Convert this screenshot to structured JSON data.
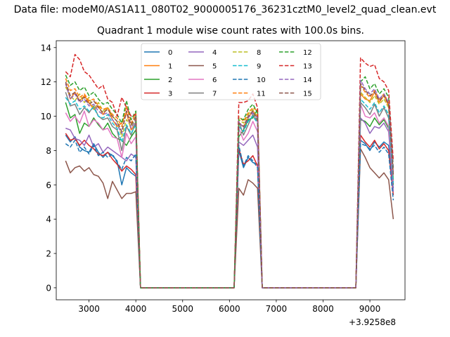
{
  "suptitle": "Data file: modeM0/AS1A11_080T02_9000005176_36231cztM0_level2_quad_clean.evt",
  "chart_data": {
    "type": "line",
    "title": "Quadrant 1 module wise count rates with 100.0s bins.",
    "xlabel": "",
    "ylabel": "",
    "x_offset_label": "+3.9258e8",
    "xlim": [
      2300,
      9750
    ],
    "ylim": [
      -0.7,
      14.4
    ],
    "xticks": [
      3000,
      4000,
      5000,
      6000,
      7000,
      8000,
      9000
    ],
    "yticks": [
      0,
      2,
      4,
      6,
      8,
      10,
      12,
      14
    ],
    "grid": false,
    "legend_position": "top-center",
    "legend_columns": 4,
    "x_segments": [
      {
        "start": 2500,
        "end": 4000,
        "step": 100
      },
      {
        "start": 6200,
        "end": 6600,
        "step": 100
      },
      {
        "start": 8800,
        "end": 9500,
        "step": 100
      }
    ],
    "series": [
      {
        "name": "0",
        "color": "#1f77b4",
        "dash": false,
        "seg_values": [
          [
            8.9,
            8.5,
            8.8,
            8.2,
            8.0,
            7.9,
            8.4,
            7.9,
            7.6,
            7.9,
            7.7,
            7.4,
            6.0,
            7.0,
            6.7,
            6.5
          ],
          [
            8.0,
            7.0,
            7.6,
            7.3,
            7.2
          ],
          [
            8.6,
            8.4,
            8.0,
            8.5,
            8.2,
            8.5,
            8.3,
            5.8
          ]
        ]
      },
      {
        "name": "1",
        "color": "#ff7f0e",
        "dash": false,
        "seg_values": [
          [
            11.9,
            11.0,
            11.4,
            10.9,
            11.2,
            10.8,
            10.4,
            10.6,
            10.1,
            10.5,
            9.8,
            9.4,
            9.6,
            10.2,
            9.2,
            9.6
          ],
          [
            9.6,
            9.4,
            9.9,
            10.3,
            10.0
          ],
          [
            11.3,
            11.0,
            10.9,
            11.4,
            10.8,
            11.2,
            10.6,
            6.2
          ]
        ]
      },
      {
        "name": "2",
        "color": "#2ca02c",
        "dash": false,
        "seg_values": [
          [
            10.8,
            9.9,
            10.1,
            9.0,
            9.6,
            9.4,
            9.9,
            9.5,
            9.2,
            9.6,
            9.0,
            8.7,
            8.6,
            8.3,
            8.8,
            9.2
          ],
          [
            8.8,
            9.2,
            9.8,
            9.9,
            10.4
          ],
          [
            9.8,
            9.7,
            9.4,
            9.9,
            9.5,
            9.8,
            9.3,
            6.0
          ]
        ]
      },
      {
        "name": "3",
        "color": "#d62728",
        "dash": false,
        "seg_values": [
          [
            9.0,
            8.6,
            8.7,
            8.3,
            8.6,
            8.3,
            8.1,
            7.8,
            7.7,
            7.9,
            7.5,
            7.2,
            6.8,
            7.1,
            6.9,
            6.6
          ],
          [
            8.1,
            7.2,
            7.4,
            7.7,
            7.1
          ],
          [
            8.9,
            8.5,
            8.2,
            8.6,
            8.1,
            8.4,
            8.0,
            5.4
          ]
        ]
      },
      {
        "name": "4",
        "color": "#9467bd",
        "dash": false,
        "seg_values": [
          [
            9.3,
            9.2,
            8.7,
            8.6,
            8.3,
            8.9,
            8.2,
            8.4,
            7.9,
            8.2,
            8.0,
            7.8,
            7.6,
            7.4,
            7.8,
            7.6
          ],
          [
            8.5,
            8.3,
            8.6,
            8.9,
            8.2
          ],
          [
            9.9,
            9.6,
            9.0,
            9.4,
            9.3,
            9.6,
            9.1,
            5.6
          ]
        ]
      },
      {
        "name": "5",
        "color": "#8c564b",
        "dash": false,
        "seg_values": [
          [
            7.4,
            6.7,
            7.0,
            7.1,
            6.8,
            7.0,
            6.6,
            6.5,
            6.1,
            5.2,
            6.2,
            5.7,
            5.2,
            5.5,
            5.5,
            5.6
          ],
          [
            5.8,
            5.4,
            6.3,
            6.1,
            5.8
          ],
          [
            8.1,
            7.6,
            7.0,
            6.7,
            6.4,
            6.7,
            6.3,
            4.0
          ]
        ]
      },
      {
        "name": "6",
        "color": "#e377c2",
        "dash": false,
        "seg_values": [
          [
            10.2,
            9.7,
            10.0,
            9.6,
            10.3,
            9.4,
            9.8,
            9.6,
            9.2,
            9.3,
            8.8,
            8.7,
            7.6,
            9.0,
            8.4,
            8.8
          ],
          [
            9.3,
            8.6,
            9.0,
            9.7,
            9.1
          ],
          [
            10.7,
            10.0,
            9.9,
            10.2,
            9.6,
            9.9,
            9.4,
            6.1
          ]
        ]
      },
      {
        "name": "7",
        "color": "#7f7f7f",
        "dash": false,
        "seg_values": [
          [
            11.4,
            10.6,
            10.7,
            10.1,
            10.5,
            10.2,
            10.6,
            10.0,
            9.8,
            9.9,
            9.4,
            9.2,
            8.0,
            9.4,
            8.9,
            9.7
          ],
          [
            9.7,
            8.9,
            9.5,
            10.1,
            9.7
          ],
          [
            10.8,
            10.5,
            10.1,
            10.7,
            10.0,
            10.5,
            9.9,
            6.3
          ]
        ]
      },
      {
        "name": "8",
        "color": "#bcbd22",
        "dash": true,
        "seg_values": [
          [
            11.7,
            11.2,
            10.9,
            11.3,
            10.8,
            11.1,
            10.4,
            10.8,
            10.3,
            10.5,
            10.0,
            9.7,
            8.8,
            9.8,
            9.4,
            9.9
          ],
          [
            9.8,
            9.6,
            10.1,
            10.4,
            9.9
          ],
          [
            11.4,
            11.1,
            10.8,
            11.2,
            10.7,
            11.0,
            10.5,
            6.4
          ]
        ]
      },
      {
        "name": "9",
        "color": "#17becf",
        "dash": true,
        "seg_values": [
          [
            11.1,
            10.7,
            10.9,
            10.4,
            10.6,
            10.3,
            10.5,
            10.0,
            9.9,
            10.1,
            9.6,
            9.3,
            8.5,
            9.5,
            9.0,
            9.5
          ],
          [
            9.4,
            9.1,
            9.7,
            10.0,
            9.6
          ],
          [
            11.0,
            10.7,
            10.4,
            10.8,
            10.2,
            10.6,
            10.1,
            6.1
          ]
        ]
      },
      {
        "name": "10",
        "color": "#1f77b4",
        "dash": true,
        "seg_values": [
          [
            8.4,
            8.2,
            8.6,
            7.9,
            8.2,
            7.8,
            8.3,
            7.7,
            7.9,
            7.6,
            7.8,
            7.3,
            6.9,
            7.6,
            7.4,
            7.8
          ],
          [
            8.3,
            7.1,
            7.7,
            7.4,
            7.0
          ],
          [
            8.4,
            8.3,
            8.1,
            8.3,
            7.9,
            8.2,
            7.8,
            5.1
          ]
        ]
      },
      {
        "name": "11",
        "color": "#ff7f0e",
        "dash": true,
        "seg_values": [
          [
            12.2,
            11.5,
            11.6,
            11.1,
            11.3,
            10.9,
            11.0,
            10.6,
            10.4,
            10.5,
            10.1,
            9.9,
            9.4,
            10.6,
            9.6,
            10.2
          ],
          [
            10.0,
            9.7,
            10.2,
            10.5,
            10.3
          ],
          [
            11.8,
            11.4,
            11.1,
            11.5,
            11.0,
            11.3,
            10.8,
            6.7
          ]
        ]
      },
      {
        "name": "12",
        "color": "#2ca02c",
        "dash": true,
        "seg_values": [
          [
            12.4,
            11.8,
            12.0,
            11.5,
            11.7,
            11.2,
            11.4,
            11.0,
            10.7,
            10.8,
            10.4,
            10.1,
            9.6,
            10.9,
            9.8,
            10.3
          ],
          [
            9.9,
            9.8,
            10.4,
            10.7,
            10.2
          ],
          [
            12.0,
            12.3,
            11.6,
            11.9,
            11.3,
            11.6,
            11.1,
            7.0
          ]
        ]
      },
      {
        "name": "13",
        "color": "#d62728",
        "dash": true,
        "seg_values": [
          [
            12.6,
            12.3,
            13.6,
            13.3,
            12.6,
            12.4,
            12.0,
            11.6,
            11.8,
            11.0,
            10.8,
            10.0,
            11.1,
            10.5,
            10.0,
            10.1
          ],
          [
            10.8,
            10.8,
            10.9,
            11.3,
            10.5
          ],
          [
            13.4,
            13.1,
            12.9,
            13.0,
            12.2,
            12.0,
            11.5,
            7.4
          ]
        ]
      },
      {
        "name": "14",
        "color": "#9467bd",
        "dash": true,
        "seg_values": [
          [
            11.9,
            11.0,
            11.3,
            10.8,
            11.0,
            10.6,
            10.7,
            10.3,
            10.1,
            10.2,
            9.8,
            9.5,
            9.0,
            10.3,
            9.3,
            9.8
          ],
          [
            9.7,
            9.3,
            9.9,
            10.2,
            9.9
          ],
          [
            12.1,
            11.6,
            11.3,
            11.6,
            11.0,
            11.3,
            10.8,
            6.8
          ]
        ]
      },
      {
        "name": "15",
        "color": "#8c564b",
        "dash": true,
        "seg_values": [
          [
            12.0,
            11.2,
            11.4,
            10.9,
            11.1,
            10.7,
            10.9,
            10.5,
            10.2,
            10.4,
            10.0,
            9.7,
            9.1,
            10.3,
            9.5,
            10.0
          ],
          [
            9.6,
            9.4,
            10.0,
            10.3,
            9.8
          ],
          [
            11.9,
            11.5,
            11.2,
            11.4,
            10.9,
            11.2,
            10.7,
            6.6
          ]
        ]
      }
    ]
  }
}
